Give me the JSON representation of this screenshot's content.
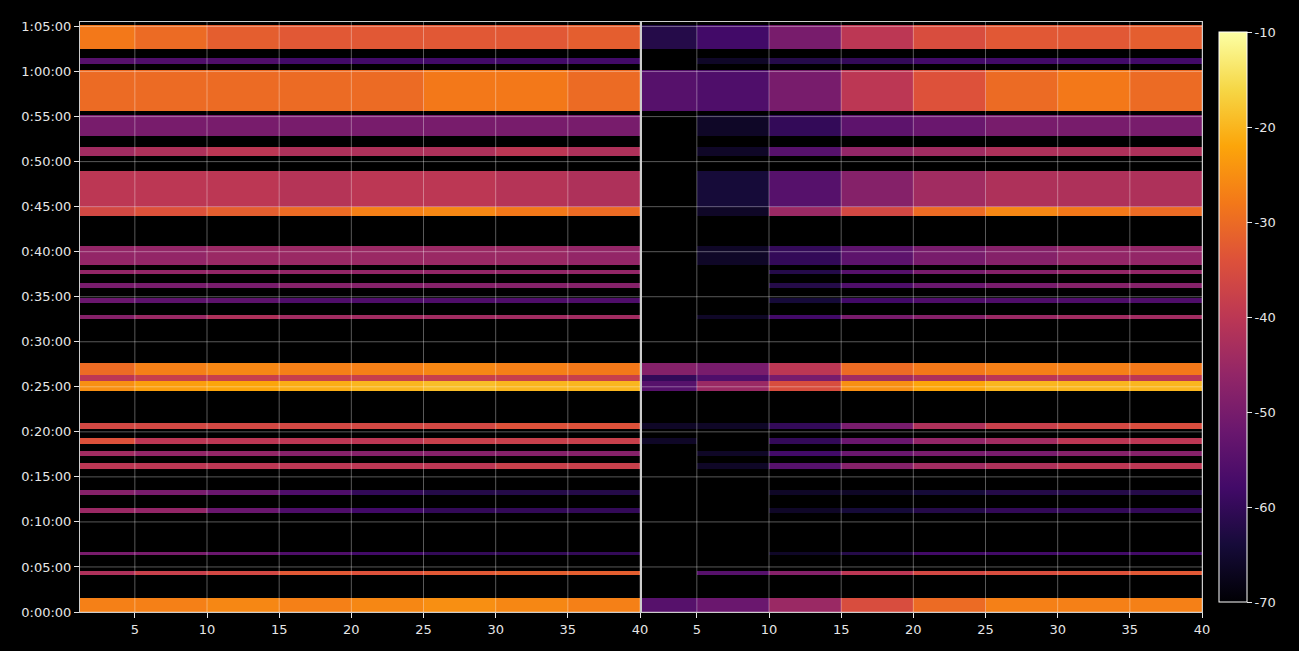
{
  "chart_data": {
    "type": "heatmap",
    "grid": true,
    "ylim": [
      0,
      3930
    ],
    "yticks": [
      {
        "value": 0,
        "label": "0:00:00"
      },
      {
        "value": 300,
        "label": "0:05:00"
      },
      {
        "value": 600,
        "label": "0:10:00"
      },
      {
        "value": 900,
        "label": "0:15:00"
      },
      {
        "value": 1200,
        "label": "0:20:00"
      },
      {
        "value": 1500,
        "label": "0:25:00"
      },
      {
        "value": 1800,
        "label": "0:30:00"
      },
      {
        "value": 2100,
        "label": "0:35:00"
      },
      {
        "value": 2400,
        "label": "0:40:00"
      },
      {
        "value": 2700,
        "label": "0:45:00"
      },
      {
        "value": 3000,
        "label": "0:50:00"
      },
      {
        "value": 3300,
        "label": "0:55:00"
      },
      {
        "value": 3600,
        "label": "1:00:00"
      },
      {
        "value": 3900,
        "label": "1:05:00"
      }
    ],
    "colorbar": {
      "range": [
        -70,
        -10
      ],
      "ticks": [
        -70,
        -60,
        -50,
        -40,
        -30,
        -20,
        -10
      ]
    },
    "panels": [
      {
        "xlim": [
          1.2,
          40
        ],
        "xticks": [
          5,
          10,
          15,
          20,
          25,
          30,
          35,
          40
        ],
        "x_edges": [
          1.2,
          5,
          10,
          15,
          20,
          25,
          30,
          35,
          40
        ],
        "cells": [
          {
            "y": [
              0,
              93
            ],
            "values": [
              -27,
              -27,
              -26,
              -27,
              -26,
              -25,
              -26,
              -27
            ]
          },
          {
            "y": [
              246,
              270
            ],
            "values": [
              -42,
              -38,
              -36,
              -33,
              -34,
              -33,
              -32,
              -32
            ]
          },
          {
            "y": [
              380,
              400
            ],
            "values": [
              -50,
              -50,
              -52,
              -56,
              -58,
              -60,
              -60,
              -60
            ]
          },
          {
            "y": [
              660,
              690
            ],
            "values": [
              -45,
              -46,
              -52,
              -56,
              -58,
              -60,
              -60,
              -60
            ]
          },
          {
            "y": [
              780,
              810
            ],
            "values": [
              -48,
              -50,
              -52,
              -56,
              -60,
              -62,
              -62,
              -62
            ]
          },
          {
            "y": [
              955,
              990
            ],
            "values": [
              -40,
              -40,
              -40,
              -40,
              -40,
              -40,
              -38,
              -38
            ]
          },
          {
            "y": [
              1040,
              1070
            ],
            "values": [
              -44,
              -46,
              -46,
              -48,
              -48,
              -48,
              -48,
              -48
            ]
          },
          {
            "y": [
              1120,
              1160
            ],
            "values": [
              -34,
              -40,
              -40,
              -40,
              -40,
              -38,
              -38,
              -38
            ]
          },
          {
            "y": [
              1220,
              1260
            ],
            "values": [
              -36,
              -36,
              -36,
              -36,
              -36,
              -36,
              -34,
              -34
            ]
          },
          {
            "y": [
              1470,
              1540
            ],
            "values": [
              -25,
              -23,
              -22,
              -21,
              -20,
              -19,
              -20,
              -20
            ]
          },
          {
            "y": [
              1540,
              1580
            ],
            "values": [
              -40,
              -38,
              -38,
              -38,
              -38,
              -38,
              -38,
              -38
            ]
          },
          {
            "y": [
              1580,
              1660
            ],
            "values": [
              -30,
              -27,
              -26,
              -27,
              -27,
              -26,
              -27,
              -28
            ]
          },
          {
            "y": [
              1950,
              1980
            ],
            "values": [
              -48,
              -45,
              -42,
              -44,
              -44,
              -44,
              -44,
              -44
            ]
          },
          {
            "y": [
              2060,
              2090
            ],
            "values": [
              -52,
              -54,
              -54,
              -56,
              -56,
              -56,
              -56,
              -56
            ]
          },
          {
            "y": [
              2155,
              2190
            ],
            "values": [
              -50,
              -50,
              -50,
              -48,
              -48,
              -48,
              -48,
              -48
            ]
          },
          {
            "y": [
              2250,
              2280
            ],
            "values": [
              -46,
              -46,
              -46,
              -46,
              -46,
              -46,
              -46,
              -46
            ]
          },
          {
            "y": [
              2310,
              2440
            ],
            "values": [
              -46,
              -46,
              -45,
              -45,
              -45,
              -45,
              -45,
              -46
            ]
          },
          {
            "y": [
              2640,
              2700
            ],
            "values": [
              -36,
              -34,
              -32,
              -30,
              -27,
              -26,
              -28,
              -30
            ]
          },
          {
            "y": [
              2700,
              2940
            ],
            "values": [
              -40,
              -40,
              -40,
              -41,
              -40,
              -40,
              -41,
              -42
            ]
          },
          {
            "y": [
              3040,
              3100
            ],
            "values": [
              -44,
              -42,
              -40,
              -42,
              -42,
              -42,
              -40,
              -42
            ]
          },
          {
            "y": [
              3170,
              3310
            ],
            "values": [
              -50,
              -50,
              -50,
              -50,
              -50,
              -50,
              -50,
              -50
            ]
          },
          {
            "y": [
              3340,
              3610
            ],
            "values": [
              -30,
              -30,
              -30,
              -30,
              -30,
              -28,
              -28,
              -30
            ]
          },
          {
            "y": [
              3650,
              3690
            ],
            "values": [
              -55,
              -56,
              -56,
              -58,
              -58,
              -58,
              -58,
              -58
            ]
          },
          {
            "y": [
              3750,
              3910
            ],
            "values": [
              -28,
              -30,
              -32,
              -33,
              -33,
              -33,
              -33,
              -32
            ]
          }
        ]
      },
      {
        "xlim": [
          1.2,
          40
        ],
        "xticks": [
          5,
          10,
          15,
          20,
          25,
          30,
          35,
          40
        ],
        "x_edges": [
          1.2,
          5,
          10,
          15,
          20,
          25,
          30,
          35,
          40
        ],
        "cells": [
          {
            "y": [
              0,
              93
            ],
            "values": [
              -55,
              -52,
              -45,
              -35,
              -30,
              -27,
              -27,
              -27
            ]
          },
          {
            "y": [
              246,
              270
            ],
            "values": [
              null,
              -55,
              -48,
              -40,
              -36,
              -35,
              -34,
              -33
            ]
          },
          {
            "y": [
              380,
              400
            ],
            "values": [
              null,
              null,
              -66,
              -62,
              -58,
              -58,
              -58,
              -58
            ]
          },
          {
            "y": [
              660,
              690
            ],
            "values": [
              null,
              null,
              -66,
              -64,
              -62,
              -60,
              -60,
              -60
            ]
          },
          {
            "y": [
              780,
              810
            ],
            "values": [
              null,
              null,
              -66,
              -66,
              -64,
              -62,
              -62,
              -62
            ]
          },
          {
            "y": [
              955,
              990
            ],
            "values": [
              null,
              -66,
              -55,
              -48,
              -44,
              -42,
              -40,
              -40
            ]
          },
          {
            "y": [
              1040,
              1070
            ],
            "values": [
              null,
              -66,
              -58,
              -52,
              -50,
              -50,
              -48,
              -48
            ]
          },
          {
            "y": [
              1120,
              1160
            ],
            "values": [
              -66,
              null,
              -60,
              -52,
              -46,
              -44,
              -40,
              -40
            ]
          },
          {
            "y": [
              1220,
              1260
            ],
            "values": [
              -66,
              -66,
              -60,
              -50,
              -42,
              -38,
              -36,
              -35
            ]
          },
          {
            "y": [
              1470,
              1540
            ],
            "values": [
              -55,
              -45,
              -35,
              -25,
              -22,
              -20,
              -20,
              -20
            ]
          },
          {
            "y": [
              1540,
              1580
            ],
            "values": [
              -60,
              -56,
              -50,
              -44,
              -42,
              -40,
              -40,
              -40
            ]
          },
          {
            "y": [
              1580,
              1660
            ],
            "values": [
              -48,
              -50,
              -40,
              -30,
              -28,
              -27,
              -27,
              -28
            ]
          },
          {
            "y": [
              1950,
              1980
            ],
            "values": [
              null,
              -66,
              -58,
              -50,
              -48,
              -45,
              -44,
              -44
            ]
          },
          {
            "y": [
              2060,
              2090
            ],
            "values": [
              null,
              null,
              -64,
              -58,
              -56,
              -56,
              -56,
              -56
            ]
          },
          {
            "y": [
              2155,
              2190
            ],
            "values": [
              null,
              null,
              -62,
              -56,
              -52,
              -50,
              -48,
              -48
            ]
          },
          {
            "y": [
              2250,
              2280
            ],
            "values": [
              null,
              null,
              -62,
              -55,
              -50,
              -48,
              -46,
              -46
            ]
          },
          {
            "y": [
              2310,
              2440
            ],
            "values": [
              null,
              -66,
              -60,
              -54,
              -50,
              -48,
              -46,
              -46
            ]
          },
          {
            "y": [
              2640,
              2700
            ],
            "values": [
              null,
              -66,
              -45,
              -36,
              -30,
              -26,
              -28,
              -30
            ]
          },
          {
            "y": [
              2700,
              2940
            ],
            "values": [
              null,
              -64,
              -55,
              -48,
              -44,
              -42,
              -42,
              -42
            ]
          },
          {
            "y": [
              3040,
              3100
            ],
            "values": [
              null,
              -66,
              -55,
              -46,
              -44,
              -42,
              -42,
              -42
            ]
          },
          {
            "y": [
              3170,
              3310
            ],
            "values": [
              null,
              -66,
              -60,
              -54,
              -52,
              -50,
              -50,
              -50
            ]
          },
          {
            "y": [
              3340,
              3610
            ],
            "values": [
              -55,
              -56,
              -50,
              -40,
              -34,
              -30,
              -28,
              -30
            ]
          },
          {
            "y": [
              3650,
              3690
            ],
            "values": [
              null,
              -66,
              -62,
              -60,
              -58,
              -58,
              -58,
              -58
            ]
          },
          {
            "y": [
              3750,
              3910
            ],
            "values": [
              -62,
              -58,
              -50,
              -40,
              -35,
              -33,
              -33,
              -32
            ]
          }
        ]
      }
    ]
  }
}
